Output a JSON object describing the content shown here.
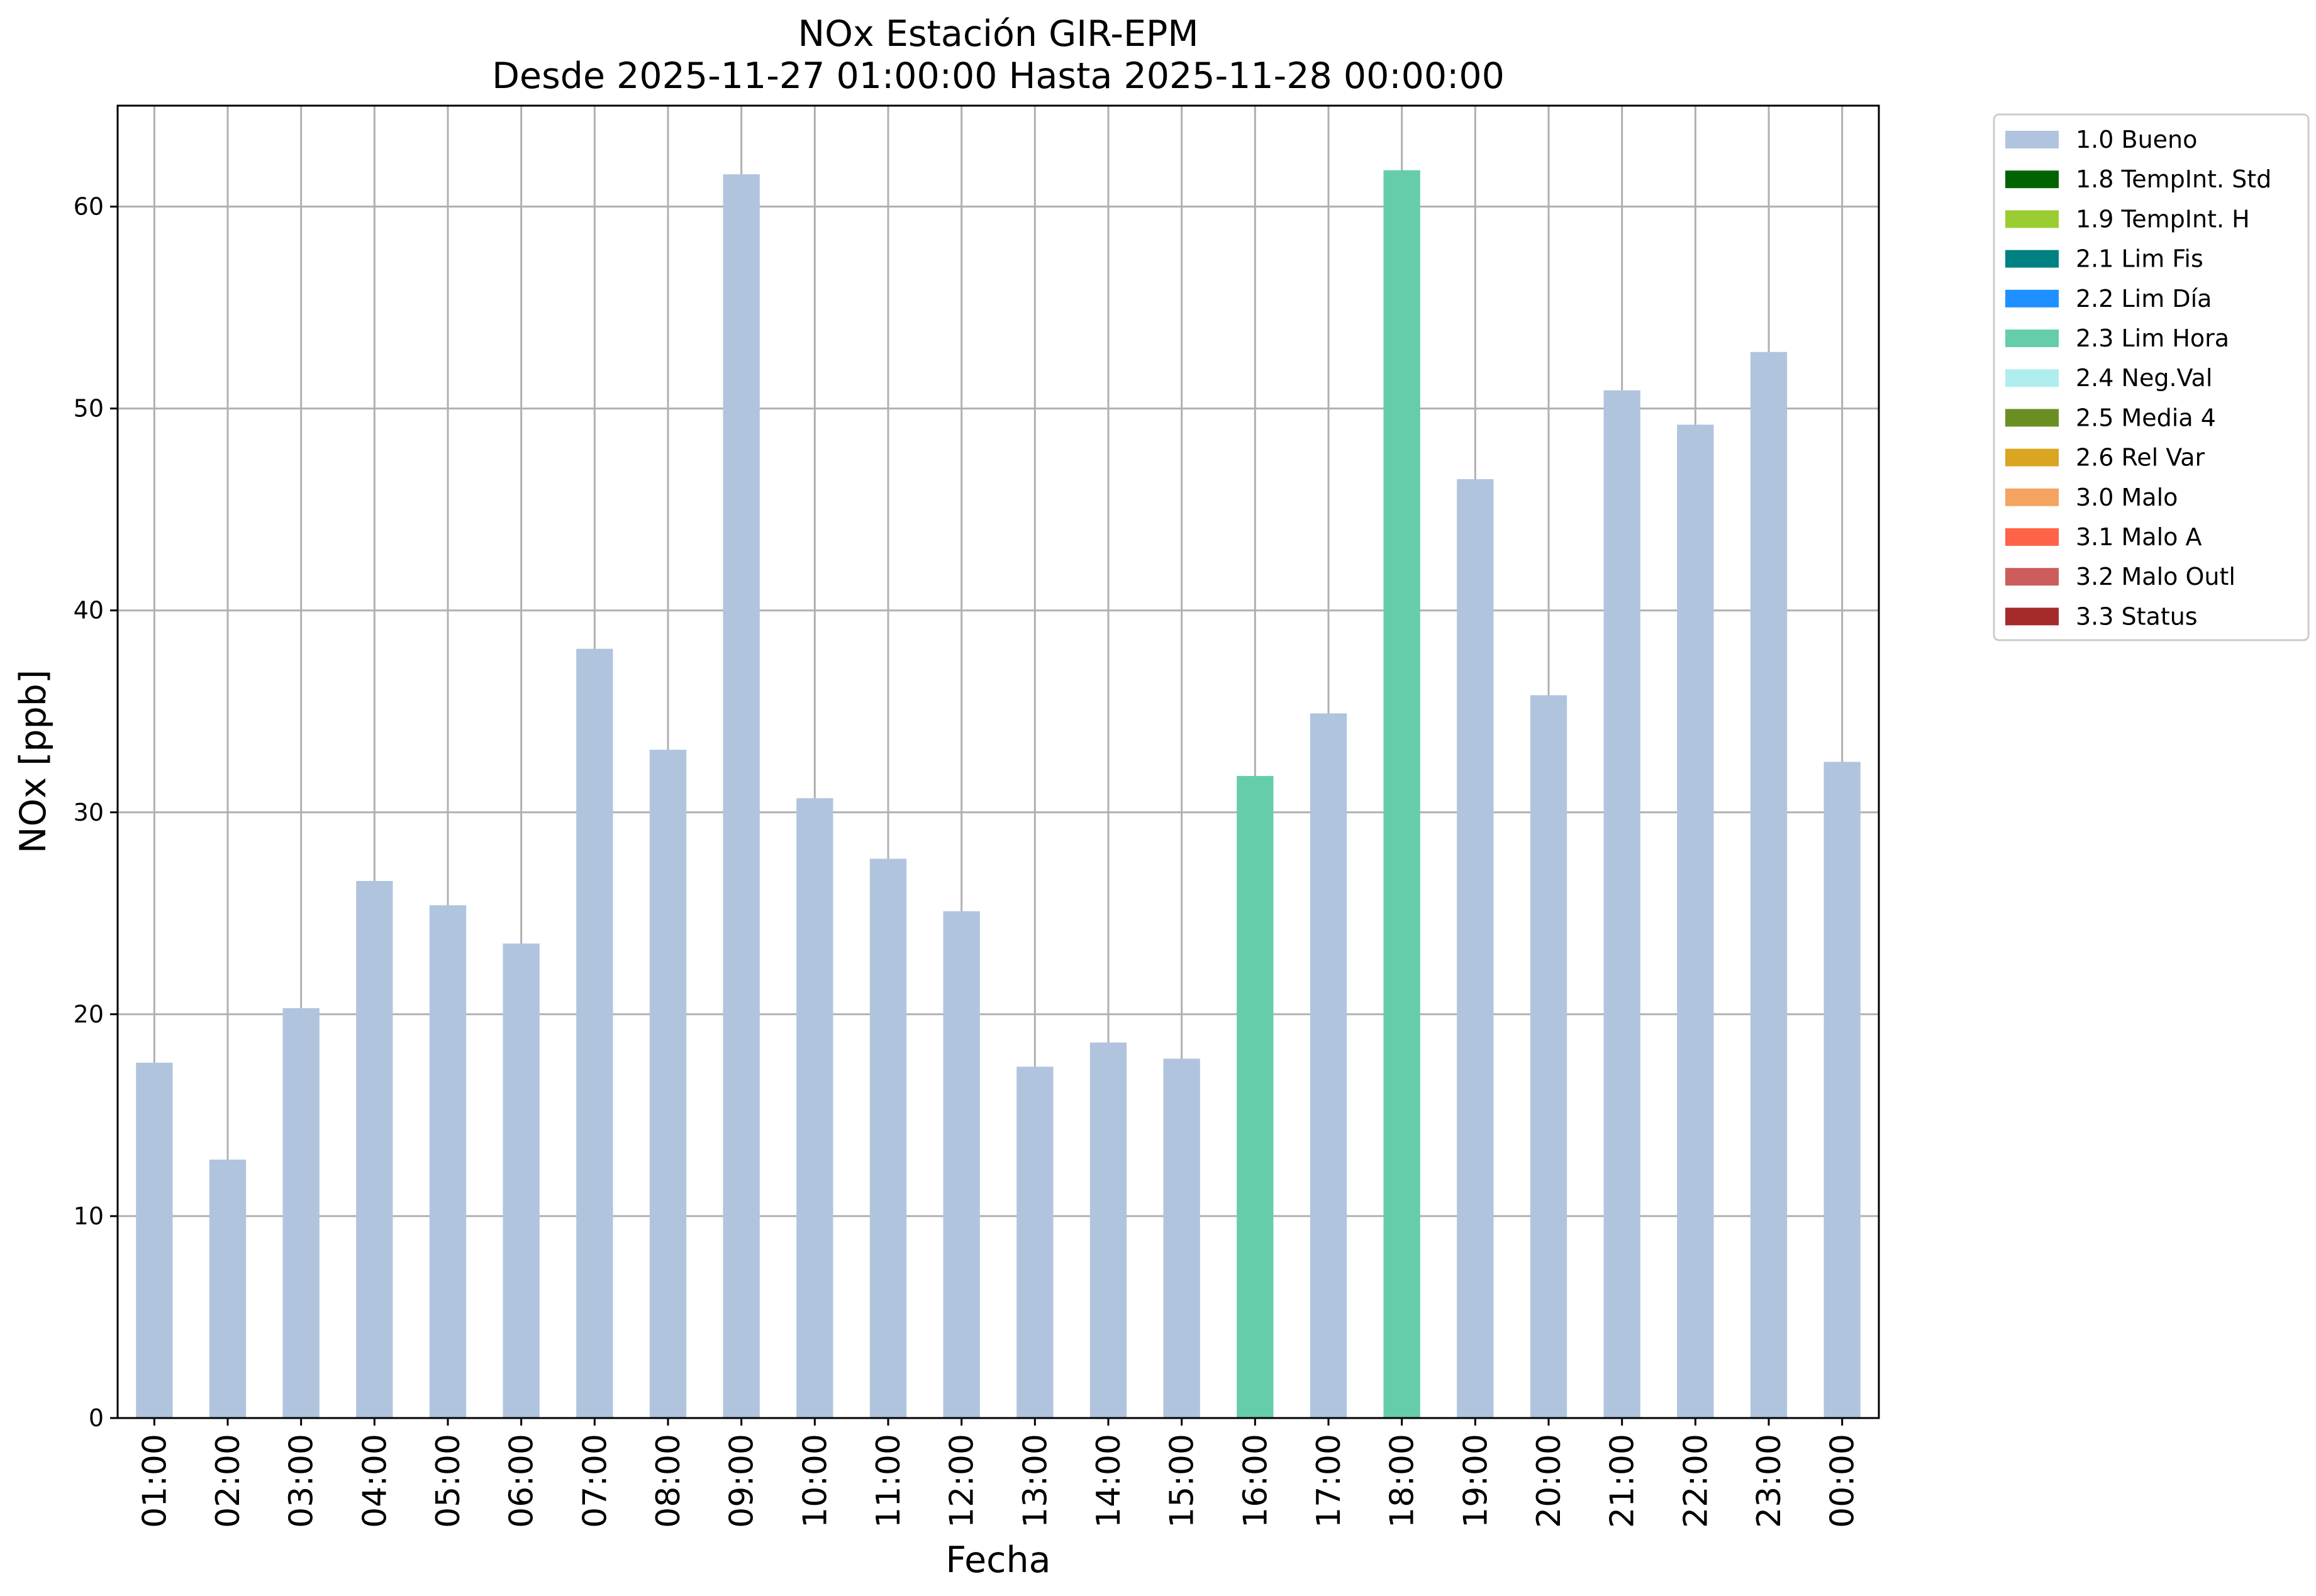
{
  "chart_data": {
    "type": "bar",
    "title": "NOx Estación GIR-EPM",
    "subtitle": "Desde 2025-11-27 01:00:00 Hasta 2025-11-28 00:00:00",
    "xlabel": "Fecha",
    "ylabel": "NOx [ppb]",
    "ylim": [
      0,
      65
    ],
    "yticks": [
      0,
      10,
      20,
      30,
      40,
      50,
      60
    ],
    "grid": true,
    "legend_position": "outside-right",
    "categories": [
      "01:00",
      "02:00",
      "03:00",
      "04:00",
      "05:00",
      "06:00",
      "07:00",
      "08:00",
      "09:00",
      "10:00",
      "11:00",
      "12:00",
      "13:00",
      "14:00",
      "15:00",
      "16:00",
      "17:00",
      "18:00",
      "19:00",
      "20:00",
      "21:00",
      "22:00",
      "23:00",
      "00:00"
    ],
    "values": [
      17.6,
      12.8,
      20.3,
      26.6,
      25.4,
      23.5,
      38.1,
      33.1,
      61.6,
      30.7,
      27.7,
      25.1,
      17.4,
      18.6,
      17.8,
      31.8,
      34.9,
      61.8,
      46.5,
      35.8,
      50.9,
      49.2,
      52.8,
      32.5
    ],
    "flags": [
      "1.0 Bueno",
      "1.0 Bueno",
      "1.0 Bueno",
      "1.0 Bueno",
      "1.0 Bueno",
      "1.0 Bueno",
      "1.0 Bueno",
      "1.0 Bueno",
      "1.0 Bueno",
      "1.0 Bueno",
      "1.0 Bueno",
      "1.0 Bueno",
      "1.0 Bueno",
      "1.0 Bueno",
      "1.0 Bueno",
      "2.3 Lim Hora",
      "1.0 Bueno",
      "2.3 Lim Hora",
      "1.0 Bueno",
      "1.0 Bueno",
      "1.0 Bueno",
      "1.0 Bueno",
      "1.0 Bueno",
      "1.0 Bueno"
    ],
    "legend": [
      {
        "label": "1.0 Bueno",
        "color": "#b0c4de"
      },
      {
        "label": "1.8 TempInt. Std",
        "color": "#006400"
      },
      {
        "label": "1.9 TempInt. H",
        "color": "#9acd32"
      },
      {
        "label": "2.1 Lim Fis",
        "color": "#008080"
      },
      {
        "label": "2.2 Lim Día",
        "color": "#1e90ff"
      },
      {
        "label": "2.3 Lim Hora",
        "color": "#66cdaa"
      },
      {
        "label": "2.4 Neg.Val",
        "color": "#afeeee"
      },
      {
        "label": "2.5 Media 4",
        "color": "#6b8e23"
      },
      {
        "label": "2.6 Rel Var",
        "color": "#daa520"
      },
      {
        "label": "3.0 Malo",
        "color": "#f4a460"
      },
      {
        "label": "3.1 Malo A",
        "color": "#ff6347"
      },
      {
        "label": "3.2 Malo Outl",
        "color": "#cd5c5c"
      },
      {
        "label": "3.3 Status",
        "color": "#a52a2a"
      }
    ]
  }
}
